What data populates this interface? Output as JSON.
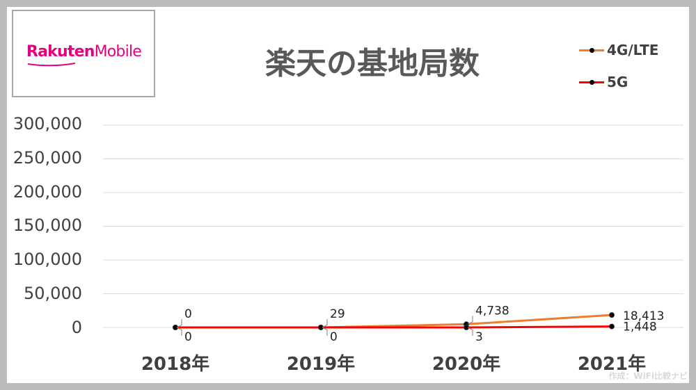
{
  "logo": {
    "brand_part1": "Rakuten",
    "brand_part2": "Mobile",
    "color": "#e4007f"
  },
  "credit": "作成：WiFi比較ナビ",
  "chart_data": {
    "type": "line",
    "title": "楽天の基地局数",
    "xlabel": "",
    "ylabel": "",
    "categories": [
      "2018年",
      "2019年",
      "2020年",
      "2021年"
    ],
    "ylim": [
      0,
      300000
    ],
    "yticks": [
      0,
      50000,
      100000,
      150000,
      200000,
      250000,
      300000
    ],
    "ytick_labels": [
      "0",
      "50,000",
      "100,000",
      "150,000",
      "200,000",
      "250,000",
      "300,000"
    ],
    "grid": true,
    "legend_position": "top-right",
    "series": [
      {
        "name": "4G/LTE",
        "color": "#ed7d31",
        "values": [
          0,
          29,
          4738,
          18413
        ],
        "labels": [
          "0",
          "29",
          "4,738",
          "18,413"
        ]
      },
      {
        "name": "5G",
        "color": "#ff0000",
        "values": [
          0,
          0,
          3,
          1448
        ],
        "labels": [
          "0",
          "0",
          "3",
          "1,448"
        ]
      }
    ]
  }
}
